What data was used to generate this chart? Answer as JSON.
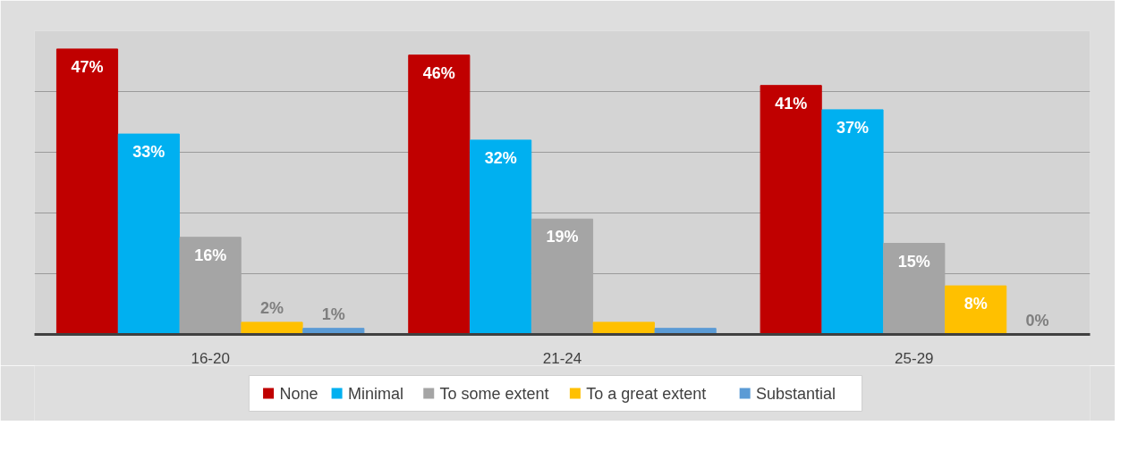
{
  "chart_data": {
    "type": "bar",
    "categories": [
      "16-20",
      "21-24",
      "25-29"
    ],
    "series": [
      {
        "name": "None",
        "color": "#c00000",
        "values": [
          47,
          46,
          41
        ],
        "value_labels": [
          "47%",
          "46%",
          "41%"
        ]
      },
      {
        "name": "Minimal",
        "color": "#00b0f0",
        "values": [
          33,
          32,
          37
        ],
        "value_labels": [
          "33%",
          "32%",
          "37%"
        ]
      },
      {
        "name": "To some extent",
        "color": "#a5a5a5",
        "values": [
          16,
          19,
          15
        ],
        "value_labels": [
          "16%",
          "19%",
          "15%"
        ]
      },
      {
        "name": "To a great extent",
        "color": "#ffc000",
        "values": [
          2,
          2,
          8
        ],
        "value_labels": [
          "2%",
          null,
          "8%"
        ]
      },
      {
        "name": "Substantial",
        "color": "#5b9bd5",
        "values": [
          1,
          1,
          0
        ],
        "value_labels": [
          "1%",
          null,
          "0%"
        ]
      }
    ],
    "ylim": [
      0,
      50
    ],
    "yticks": [
      {
        "value": 0,
        "label": null
      },
      {
        "value": 10,
        "label": null
      },
      {
        "value": 20,
        "label": null
      },
      {
        "value": 30,
        "label": null
      },
      {
        "value": 40,
        "label": null
      },
      {
        "value": 50,
        "label": null
      }
    ],
    "tick_labels": "x",
    "grid": "y",
    "legend": "bottom"
  }
}
